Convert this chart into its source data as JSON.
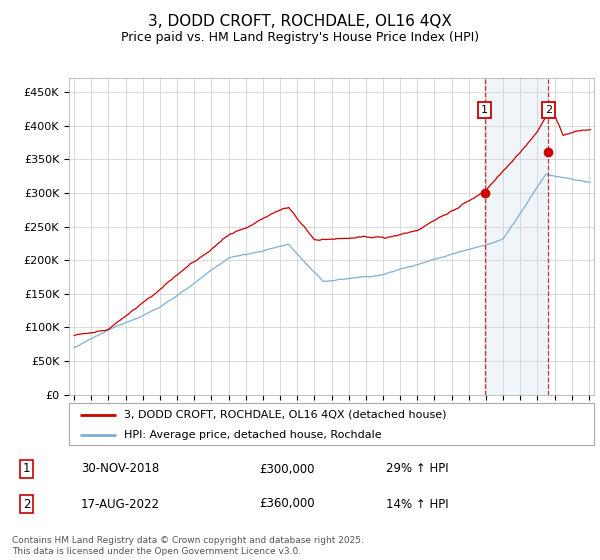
{
  "title": "3, DODD CROFT, ROCHDALE, OL16 4QX",
  "subtitle": "Price paid vs. HM Land Registry's House Price Index (HPI)",
  "legend_line1": "3, DODD CROFT, ROCHDALE, OL16 4QX (detached house)",
  "legend_line2": "HPI: Average price, detached house, Rochdale",
  "transaction1_date": "30-NOV-2018",
  "transaction1_price": "£300,000",
  "transaction1_hpi": "29% ↑ HPI",
  "transaction2_date": "17-AUG-2022",
  "transaction2_price": "£360,000",
  "transaction2_hpi": "14% ↑ HPI",
  "footer": "Contains HM Land Registry data © Crown copyright and database right 2025.\nThis data is licensed under the Open Government Licence v3.0.",
  "red_color": "#cc0000",
  "blue_color": "#7fafd4",
  "marker1_x": 2018.92,
  "marker1_y": 300000,
  "marker2_x": 2022.63,
  "marker2_y": 360000,
  "vline1_x": 2018.92,
  "vline2_x": 2022.63,
  "ylim": [
    0,
    470000
  ],
  "xlim_start": 1994.7,
  "xlim_end": 2025.3
}
